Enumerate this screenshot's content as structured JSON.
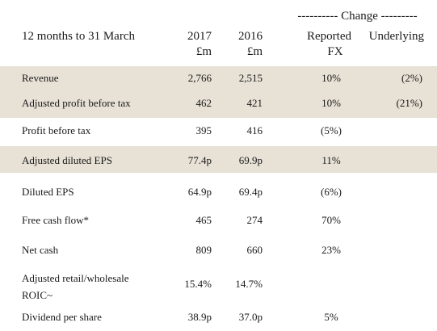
{
  "header": {
    "change_group": "---------- Change ---------",
    "period": "12 months to 31 March",
    "col_2017_year": "2017",
    "col_2017_unit": "£m",
    "col_2016_year": "2016",
    "col_2016_unit": "£m",
    "reported_line1": "Reported",
    "reported_line2": "FX",
    "underlying": "Underlying"
  },
  "rows": [
    {
      "label": "Revenue",
      "v2017": "2,766",
      "v2016": "2,515",
      "reported": "10%",
      "underlying": "(2%)",
      "shaded": true
    },
    {
      "label": "Adjusted profit before tax",
      "v2017": "462",
      "v2016": "421",
      "reported": "10%",
      "underlying": "(21%)",
      "shaded": true
    },
    {
      "label": "Profit before tax",
      "v2017": "395",
      "v2016": "416",
      "reported": "(5%)",
      "underlying": "",
      "shaded": false
    },
    {
      "label": "Adjusted diluted EPS",
      "v2017": "77.4p",
      "v2016": "69.9p",
      "reported": "11%",
      "underlying": "",
      "shaded": true
    },
    {
      "label": "Diluted EPS",
      "v2017": "64.9p",
      "v2016": "69.4p",
      "reported": "(6%)",
      "underlying": "",
      "shaded": false
    },
    {
      "label": "Free cash flow*",
      "v2017": "465",
      "v2016": "274",
      "reported": "70%",
      "underlying": "",
      "shaded": false
    },
    {
      "label": "Net cash",
      "v2017": "809",
      "v2016": "660",
      "reported": "23%",
      "underlying": "",
      "shaded": false
    },
    {
      "label_line1": "Adjusted retail/wholesale",
      "label_line2": "ROIC~",
      "v2017": "15.4%",
      "v2016": "14.7%",
      "reported": "",
      "underlying": "",
      "shaded": false
    },
    {
      "label": "Dividend per share",
      "v2017": "38.9p",
      "v2016": "37.0p",
      "reported": "5%",
      "underlying": "",
      "shaded": false
    }
  ],
  "colors": {
    "shade": "#e7e1d6",
    "text": "#1a1a1a"
  }
}
